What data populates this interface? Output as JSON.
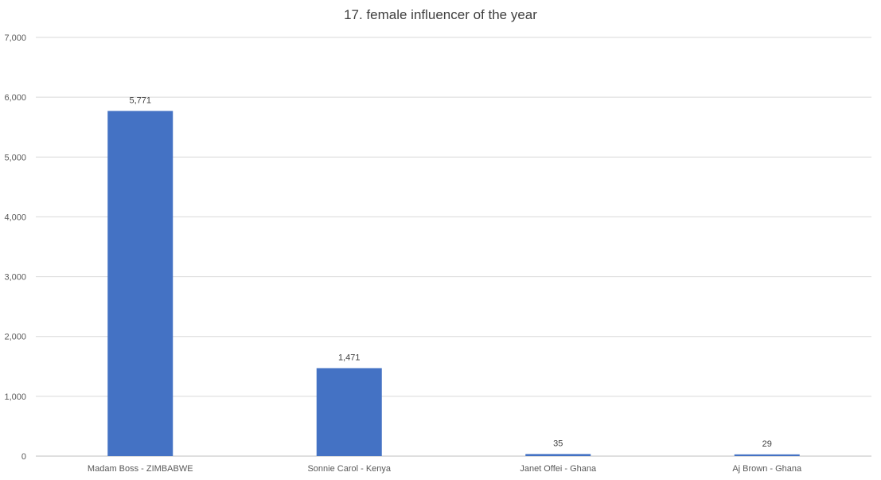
{
  "chart_data": {
    "type": "bar",
    "title": "17. female influencer of the year",
    "xlabel": "",
    "ylabel": "",
    "categories": [
      "Madam Boss - ZIMBABWE",
      "Sonnie Carol - Kenya",
      "Janet Offei - Ghana",
      "Aj Brown - Ghana"
    ],
    "values": [
      5771,
      1471,
      35,
      29
    ],
    "data_labels": [
      "5,771",
      "1,471",
      "35",
      "29"
    ],
    "ylim": [
      0,
      7000
    ],
    "yticks": [
      0,
      1000,
      2000,
      3000,
      4000,
      5000,
      6000,
      7000
    ],
    "ytick_labels": [
      "0",
      "1,000",
      "2,000",
      "3,000",
      "4,000",
      "5,000",
      "6,000",
      "7,000"
    ],
    "grid": true,
    "legend": "none",
    "bar_color": "#4472C4"
  }
}
